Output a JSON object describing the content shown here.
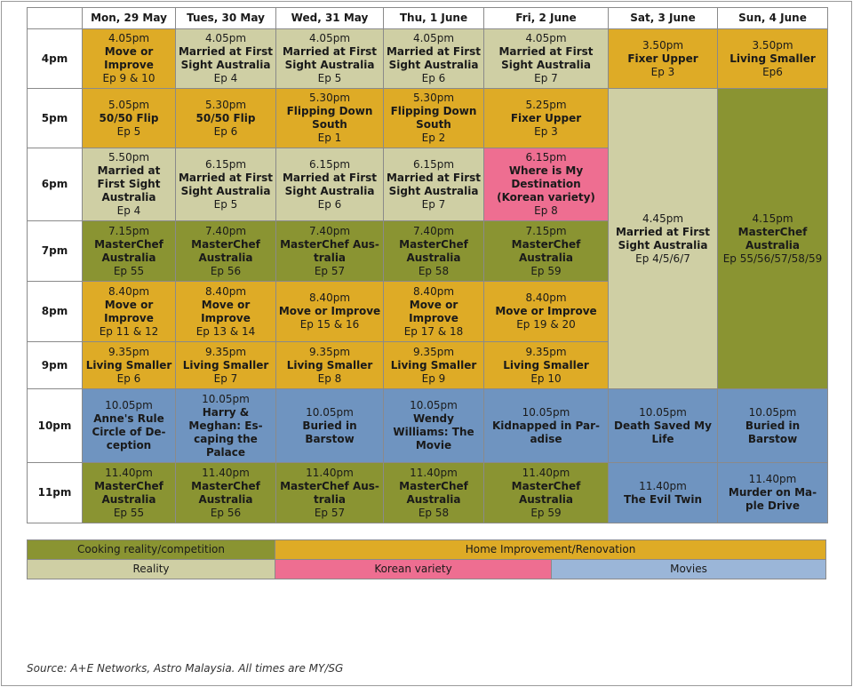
{
  "days": [
    "Mon, 29 May",
    "Tues, 30 May",
    "Wed, 31 May",
    "Thu, 1 June",
    "Fri, 2 June",
    "Sat, 3 June",
    "Sun, 4 June"
  ],
  "times": [
    "4pm",
    "5pm",
    "6pm",
    "7pm",
    "8pm",
    "9pm",
    "10pm",
    "11pm"
  ],
  "cells": [
    {
      "time": "4.05pm",
      "title": "Move or Improve",
      "ep": "Ep 9 & 10"
    },
    {
      "time": "4.05pm",
      "title": "Married at First Sight Australia",
      "ep": "Ep 4"
    },
    {
      "time": "4.05pm",
      "title": "Married at First Sight Australia",
      "ep": "Ep 5"
    },
    {
      "time": "4.05pm",
      "title": "Married at First Sight Australia",
      "ep": "Ep 6"
    },
    {
      "time": "4.05pm",
      "title": "Married at First Sight Australia",
      "ep": "Ep 7"
    },
    {
      "time": "3.50pm",
      "title": "Fixer Upper",
      "ep": "Ep 3"
    },
    {
      "time": "3.50pm",
      "title": "Living Smaller",
      "ep": "Ep6"
    },
    {
      "time": "5.05pm",
      "title": "50/50 Flip",
      "ep": "Ep 5"
    },
    {
      "time": "5.30pm",
      "title": "50/50 Flip",
      "ep": "Ep 6"
    },
    {
      "time": "5.30pm",
      "title": "Flipping Down South",
      "ep": "Ep 1"
    },
    {
      "time": "5.30pm",
      "title": "Flipping Down South",
      "ep": "Ep 2"
    },
    {
      "time": "5.25pm",
      "title": "Fixer Upper",
      "ep": "Ep 3"
    },
    {
      "time": "4.45pm",
      "title": "Married at First Sight Australia",
      "ep": "Ep 4/5/6/7"
    },
    {
      "time": "4.15pm",
      "title": "MasterChef Australia",
      "ep": "Ep 55/56/57/58/59"
    },
    {
      "time": "5.50pm",
      "title": "Married at First Sight Australia",
      "ep": "Ep 4"
    },
    {
      "time": "6.15pm",
      "title": "Married at First Sight Australia",
      "ep": "Ep 5"
    },
    {
      "time": "6.15pm",
      "title": "Married at First Sight Australia",
      "ep": "Ep 6"
    },
    {
      "time": "6.15pm",
      "title": "Married at First Sight Australia",
      "ep": "Ep 7"
    },
    {
      "time": "6.15pm",
      "title": "Where is My Destination (Korean variety)",
      "ep": "Ep 8"
    },
    {
      "time": "7.15pm",
      "title": "MasterChef Australia",
      "ep": "Ep 55"
    },
    {
      "time": "7.40pm",
      "title": "MasterChef Australia",
      "ep": "Ep 56"
    },
    {
      "time": "7.40pm",
      "title": "MasterChef Aus-tralia",
      "ep": "Ep 57"
    },
    {
      "time": "7.40pm",
      "title": "MasterChef Australia",
      "ep": "Ep 58"
    },
    {
      "time": "7.15pm",
      "title": "MasterChef Australia",
      "ep": "Ep 59"
    },
    {
      "time": "8.40pm",
      "title": "Move or Improve",
      "ep": "Ep 11 & 12"
    },
    {
      "time": "8.40pm",
      "title": "Move or Improve",
      "ep": "Ep 13 & 14"
    },
    {
      "time": "8.40pm",
      "title": "Move or Improve",
      "ep": "Ep 15 & 16"
    },
    {
      "time": "8.40pm",
      "title": "Move or Improve",
      "ep": "Ep 17 & 18"
    },
    {
      "time": "8.40pm",
      "title": "Move or Improve",
      "ep": "Ep 19 & 20"
    },
    {
      "time": "9.35pm",
      "title": "Living Smaller",
      "ep": "Ep 6"
    },
    {
      "time": "9.35pm",
      "title": "Living Smaller",
      "ep": "Ep 7"
    },
    {
      "time": "9.35pm",
      "title": "Living Smaller",
      "ep": "Ep 8"
    },
    {
      "time": "9.35pm",
      "title": "Living Smaller",
      "ep": "Ep 9"
    },
    {
      "time": "9.35pm",
      "title": "Living Smaller",
      "ep": "Ep 10"
    },
    {
      "time": "10.05pm",
      "title": "Anne's Rule Circle of De-ception",
      "ep": ""
    },
    {
      "time": "10.05pm",
      "title": "Harry & Meghan: Es-caping the Palace",
      "ep": ""
    },
    {
      "time": "10.05pm",
      "title": "Buried in Barstow",
      "ep": ""
    },
    {
      "time": "10.05pm",
      "title": "Wendy Williams: The Movie",
      "ep": ""
    },
    {
      "time": "10.05pm",
      "title": "Kidnapped in Par-adise",
      "ep": ""
    },
    {
      "time": "10.05pm",
      "title": "Death Saved My Life",
      "ep": ""
    },
    {
      "time": "10.05pm",
      "title": "Buried in Barstow",
      "ep": ""
    },
    {
      "time": "11.40pm",
      "title": "MasterChef Australia",
      "ep": "Ep 55"
    },
    {
      "time": "11.40pm",
      "title": "MasterChef Australia",
      "ep": "Ep 56"
    },
    {
      "time": "11.40pm",
      "title": "MasterChef Aus-tralia",
      "ep": "Ep 57"
    },
    {
      "time": "11.40pm",
      "title": "MasterChef Australia",
      "ep": "Ep 58"
    },
    {
      "time": "11.40pm",
      "title": "MasterChef Australia",
      "ep": "Ep 59"
    },
    {
      "time": "11.40pm",
      "title": "The Evil Twin",
      "ep": ""
    },
    {
      "time": "11.40pm",
      "title": "Murder on Ma-ple Drive",
      "ep": ""
    }
  ],
  "legend": {
    "cooking": "Cooking reality/competition",
    "home": "Home Improvement/Renovation",
    "reality": "Reality",
    "korean": "Korean variety",
    "movies": "Movies"
  },
  "colors": {
    "cooking": "#8a9432",
    "home": "#deab26",
    "reality": "#cfcfa4",
    "korean": "#ee6e91",
    "movies": "#6f94c0"
  },
  "source": "Source: A+E Networks, Astro Malaysia. All times are MY/SG"
}
